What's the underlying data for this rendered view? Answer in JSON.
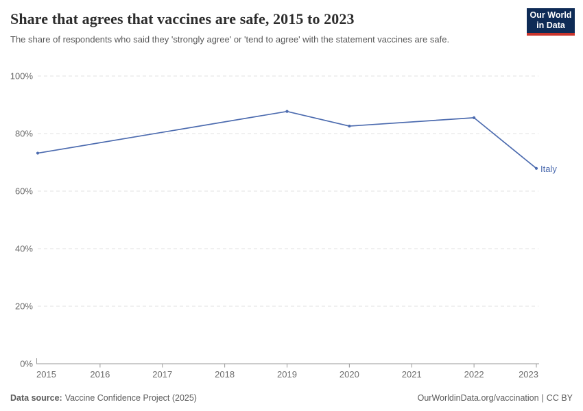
{
  "header": {
    "title": "Share that agrees that vaccines are safe, 2015 to 2023",
    "subtitle": "The share of respondents who said they 'strongly agree' or 'tend to agree' with the statement vaccines are safe.",
    "logo": {
      "line1": "Our World",
      "line2": "in Data",
      "bg_color": "#0E2B56",
      "accent_color": "#C9342C"
    }
  },
  "chart_data": {
    "type": "line",
    "title": "Share that agrees that vaccines are safe, 2015 to 2023",
    "xlabel": "",
    "ylabel": "",
    "xlim": [
      2015,
      2023
    ],
    "ylim": [
      0,
      100
    ],
    "grid": "horizontal-dashed",
    "grid_color": "#E2E2E2",
    "axis_color": "#9A9A9A",
    "axis_text_color": "#6B6B6B",
    "x_ticks": [
      2015,
      2016,
      2017,
      2018,
      2019,
      2020,
      2021,
      2022,
      2023
    ],
    "y_ticks": [
      {
        "value": 0,
        "label": "0%"
      },
      {
        "value": 20,
        "label": "20%"
      },
      {
        "value": 40,
        "label": "40%"
      },
      {
        "value": 60,
        "label": "60%"
      },
      {
        "value": 80,
        "label": "80%"
      },
      {
        "value": 100,
        "label": "100%"
      }
    ],
    "series": [
      {
        "name": "Italy",
        "color": "#4C6BAF",
        "points": [
          {
            "x": 2015,
            "y": 73.2
          },
          {
            "x": 2019,
            "y": 87.7
          },
          {
            "x": 2020,
            "y": 82.6
          },
          {
            "x": 2022,
            "y": 85.5
          },
          {
            "x": 2023,
            "y": 67.9
          }
        ]
      }
    ]
  },
  "footer": {
    "source_label": "Data source:",
    "source_value": "Vaccine Confidence Project (2025)",
    "link": "OurWorldinData.org/vaccination",
    "separator": "|",
    "license": "CC BY"
  }
}
